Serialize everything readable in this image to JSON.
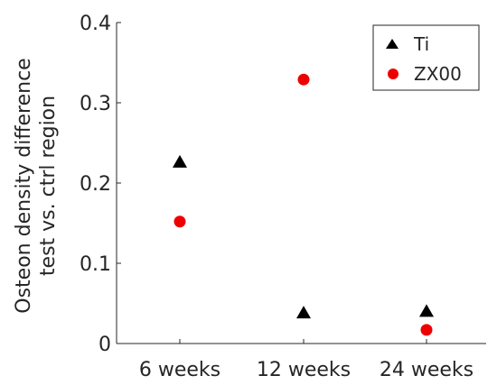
{
  "chart_data": {
    "type": "scatter",
    "categories": [
      "6 weeks",
      "12 weeks",
      "24 weeks"
    ],
    "ylabel": [
      "Osteon density difference",
      "test vs. ctrl region"
    ],
    "ylim": [
      0,
      0.4
    ],
    "yticks": [
      "0",
      "0.1",
      "0.2",
      "0.3",
      "0.4"
    ],
    "grid": false,
    "legend_position": "top-right",
    "series": [
      {
        "name": "Ti",
        "marker": "triangle",
        "color": "#000000",
        "values": [
          0.226,
          0.038,
          0.04
        ]
      },
      {
        "name": "ZX00",
        "marker": "circle",
        "color": "#ee0000",
        "values": [
          0.152,
          0.329,
          0.017
        ]
      }
    ]
  }
}
